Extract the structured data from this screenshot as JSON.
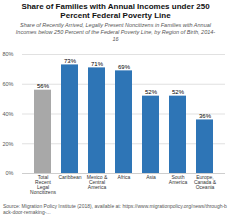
{
  "chart_data": {
    "type": "bar",
    "title": "Share of Families with Annual Incomes under 250\nPercent Federal Poverty Line",
    "subtitle": "Share of Recently Arrived, Legally Present Noncitizens in Families with Annual\nIncomes below 250 Percent of the Federal Poverty Line, by Region of Birth, 2014-\n16",
    "source": "Source: Migration Policy Institute (2018), available at: https://www.migrationpolicy.org/news/through-back-door-remaking-...",
    "categories": [
      "Total Recent\nLegal\nNoncitizens",
      "Caribbean",
      "Mexico &\nCentral America",
      "Africa",
      "Asia",
      "South America",
      "Europe,\nCanada &\nOceania"
    ],
    "values": [
      56,
      73,
      71,
      69,
      52,
      52,
      36
    ],
    "value_labels": [
      "56%",
      "73%",
      "71%",
      "69%",
      "52%",
      "52%",
      "36%"
    ],
    "colors": [
      "#a8a8a8",
      "#2e75b6",
      "#2e75b6",
      "#2e75b6",
      "#2e75b6",
      "#2e75b6",
      "#2e75b6"
    ],
    "ylim": [
      0,
      80
    ],
    "yticks": [
      {
        "value": 0,
        "label": "0%"
      },
      {
        "value": 20,
        "label": "20%"
      },
      {
        "value": 40,
        "label": "40%"
      },
      {
        "value": 60,
        "label": "60%"
      },
      {
        "value": 80,
        "label": "80%"
      }
    ],
    "grid": true,
    "data_labels": true
  }
}
